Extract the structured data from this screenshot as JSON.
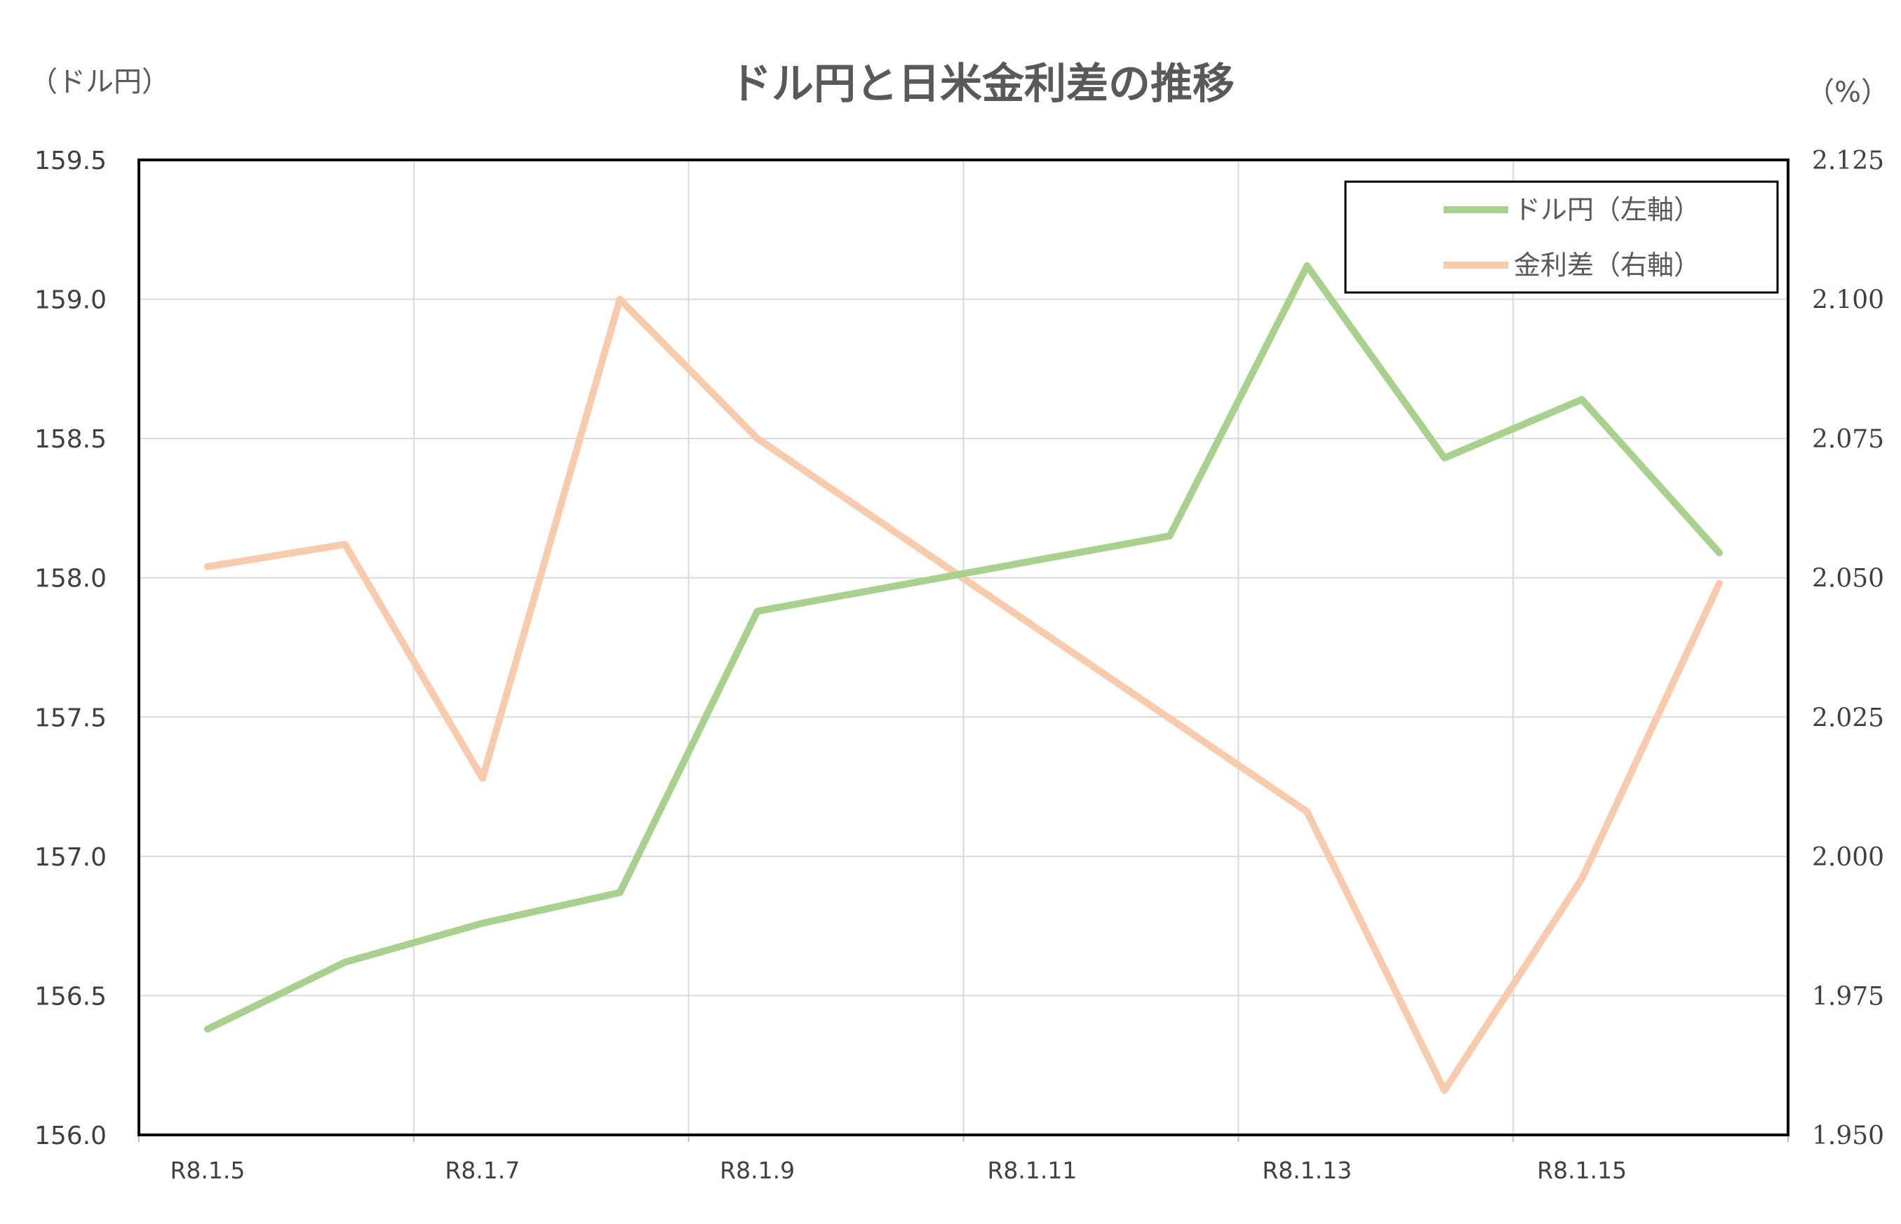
{
  "chart_data": {
    "type": "line",
    "title": "ドル円と日米金利差の推移",
    "left_axis_unit": "（ドル円）",
    "right_axis_unit": "（%）",
    "x": [
      "R8.1.5",
      "R8.1.6",
      "R8.1.7",
      "R8.1.8",
      "R8.1.9",
      "R8.1.10",
      "R8.1.11",
      "R8.1.12",
      "R8.1.13",
      "R8.1.14",
      "R8.1.15",
      "R8.1.16"
    ],
    "x_tick_labels": [
      "R8.1.5",
      "R8.1.7",
      "R8.1.9",
      "R8.1.11",
      "R8.1.13",
      "R8.1.15"
    ],
    "left_axis": {
      "ylim": [
        156.0,
        159.5
      ],
      "ticks": [
        "156.0",
        "156.5",
        "157.0",
        "157.5",
        "158.0",
        "158.5",
        "159.0",
        "159.5"
      ]
    },
    "right_axis": {
      "ylim": [
        1.95,
        2.125
      ],
      "ticks": [
        "1.950",
        "1.975",
        "2.000",
        "2.025",
        "2.050",
        "2.075",
        "2.100",
        "2.125"
      ]
    },
    "series": [
      {
        "name": "ドル円（左軸）",
        "axis": "left",
        "color": "#a9d18e",
        "x": [
          "R8.1.5",
          "R8.1.6",
          "R8.1.7",
          "R8.1.8",
          "R8.1.9",
          "R8.1.12",
          "R8.1.13",
          "R8.1.14",
          "R8.1.15",
          "R8.1.16"
        ],
        "values": [
          156.38,
          156.62,
          156.76,
          156.87,
          157.88,
          158.15,
          159.12,
          158.43,
          158.64,
          158.09
        ]
      },
      {
        "name": "金利差（右軸）",
        "axis": "right",
        "color": "#f8cbad",
        "x": [
          "R8.1.5",
          "R8.1.6",
          "R8.1.7",
          "R8.1.8",
          "R8.1.9",
          "R8.1.13",
          "R8.1.14",
          "R8.1.15",
          "R8.1.16"
        ],
        "values": [
          2.052,
          2.056,
          2.014,
          2.1,
          2.075,
          2.008,
          1.958,
          1.996,
          2.049
        ]
      }
    ],
    "grid": true,
    "legend_position": "top-right"
  }
}
